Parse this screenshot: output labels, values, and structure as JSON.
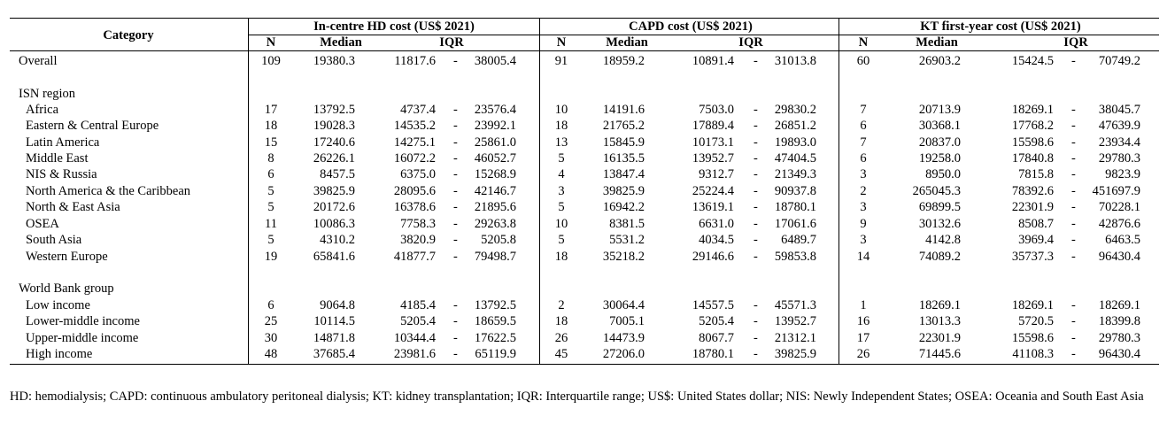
{
  "headers": {
    "category": "Category",
    "groups": [
      "In-centre HD cost (US$ 2021)",
      "CAPD cost (US$ 2021)",
      "KT first-year cost (US$ 2021)"
    ],
    "n": "N",
    "median": "Median",
    "iqr": "IQR"
  },
  "rows": [
    {
      "type": "data",
      "label": "Overall",
      "indent": false,
      "v": [
        [
          "109",
          "19380.3",
          "11817.6",
          "38005.4"
        ],
        [
          "91",
          "18959.2",
          "10891.4",
          "31013.8"
        ],
        [
          "60",
          "26903.2",
          "15424.5",
          "70749.2"
        ]
      ]
    },
    {
      "type": "section",
      "label": "ISN region"
    },
    {
      "type": "data",
      "label": "Africa",
      "indent": true,
      "v": [
        [
          "17",
          "13792.5",
          "4737.4",
          "23576.4"
        ],
        [
          "10",
          "14191.6",
          "7503.0",
          "29830.2"
        ],
        [
          "7",
          "20713.9",
          "18269.1",
          "38045.7"
        ]
      ]
    },
    {
      "type": "data",
      "label": "Eastern & Central Europe",
      "indent": true,
      "v": [
        [
          "18",
          "19028.3",
          "14535.2",
          "23992.1"
        ],
        [
          "18",
          "21765.2",
          "17889.4",
          "26851.2"
        ],
        [
          "6",
          "30368.1",
          "17768.2",
          "47639.9"
        ]
      ]
    },
    {
      "type": "data",
      "label": "Latin America",
      "indent": true,
      "v": [
        [
          "15",
          "17240.6",
          "14275.1",
          "25861.0"
        ],
        [
          "13",
          "15845.9",
          "10173.1",
          "19893.0"
        ],
        [
          "7",
          "20837.0",
          "15598.6",
          "23934.4"
        ]
      ]
    },
    {
      "type": "data",
      "label": "Middle East",
      "indent": true,
      "v": [
        [
          "8",
          "26226.1",
          "16072.2",
          "46052.7"
        ],
        [
          "5",
          "16135.5",
          "13952.7",
          "47404.5"
        ],
        [
          "6",
          "19258.0",
          "17840.8",
          "29780.3"
        ]
      ]
    },
    {
      "type": "data",
      "label": "NIS & Russia",
      "indent": true,
      "v": [
        [
          "6",
          "8457.5",
          "6375.0",
          "15268.9"
        ],
        [
          "4",
          "13847.4",
          "9312.7",
          "21349.3"
        ],
        [
          "3",
          "8950.0",
          "7815.8",
          "9823.9"
        ]
      ]
    },
    {
      "type": "data",
      "label": "North America & the Caribbean",
      "indent": true,
      "v": [
        [
          "5",
          "39825.9",
          "28095.6",
          "42146.7"
        ],
        [
          "3",
          "39825.9",
          "25224.4",
          "90937.8"
        ],
        [
          "2",
          "265045.3",
          "78392.6",
          "451697.9"
        ]
      ]
    },
    {
      "type": "data",
      "label": "North & East Asia",
      "indent": true,
      "v": [
        [
          "5",
          "20172.6",
          "16378.6",
          "21895.6"
        ],
        [
          "5",
          "16942.2",
          "13619.1",
          "18780.1"
        ],
        [
          "3",
          "69899.5",
          "22301.9",
          "70228.1"
        ]
      ]
    },
    {
      "type": "data",
      "label": "OSEA",
      "indent": true,
      "v": [
        [
          "11",
          "10086.3",
          "7758.3",
          "29263.8"
        ],
        [
          "10",
          "8381.5",
          "6631.0",
          "17061.6"
        ],
        [
          "9",
          "30132.6",
          "8508.7",
          "42876.6"
        ]
      ]
    },
    {
      "type": "data",
      "label": "South Asia",
      "indent": true,
      "v": [
        [
          "5",
          "4310.2",
          "3820.9",
          "5205.8"
        ],
        [
          "5",
          "5531.2",
          "4034.5",
          "6489.7"
        ],
        [
          "3",
          "4142.8",
          "3969.4",
          "6463.5"
        ]
      ]
    },
    {
      "type": "data",
      "label": "Western Europe",
      "indent": true,
      "v": [
        [
          "19",
          "65841.6",
          "41877.7",
          "79498.7"
        ],
        [
          "18",
          "35218.2",
          "29146.6",
          "59853.8"
        ],
        [
          "14",
          "74089.2",
          "35737.3",
          "96430.4"
        ]
      ]
    },
    {
      "type": "section",
      "label": "World Bank group"
    },
    {
      "type": "data",
      "label": "Low income",
      "indent": true,
      "v": [
        [
          "6",
          "9064.8",
          "4185.4",
          "13792.5"
        ],
        [
          "2",
          "30064.4",
          "14557.5",
          "45571.3"
        ],
        [
          "1",
          "18269.1",
          "18269.1",
          "18269.1"
        ]
      ]
    },
    {
      "type": "data",
      "label": "Lower-middle income",
      "indent": true,
      "v": [
        [
          "25",
          "10114.5",
          "5205.4",
          "18659.5"
        ],
        [
          "18",
          "7005.1",
          "5205.4",
          "13952.7"
        ],
        [
          "16",
          "13013.3",
          "5720.5",
          "18399.8"
        ]
      ]
    },
    {
      "type": "data",
      "label": "Upper-middle income",
      "indent": true,
      "v": [
        [
          "30",
          "14871.8",
          "10344.4",
          "17622.5"
        ],
        [
          "26",
          "14473.9",
          "8067.7",
          "21312.1"
        ],
        [
          "17",
          "22301.9",
          "15598.6",
          "29780.3"
        ]
      ]
    },
    {
      "type": "data",
      "label": "High income",
      "indent": true,
      "v": [
        [
          "48",
          "37685.4",
          "23981.6",
          "65119.9"
        ],
        [
          "45",
          "27206.0",
          "18780.1",
          "39825.9"
        ],
        [
          "26",
          "71445.6",
          "41108.3",
          "96430.4"
        ]
      ]
    }
  ],
  "footnote": "HD: hemodialysis; CAPD: continuous ambulatory peritoneal dialysis; KT: kidney transplantation; IQR: Interquartile range; US$: United States dollar; NIS: Newly Independent States; OSEA: Oceania and South East Asia"
}
